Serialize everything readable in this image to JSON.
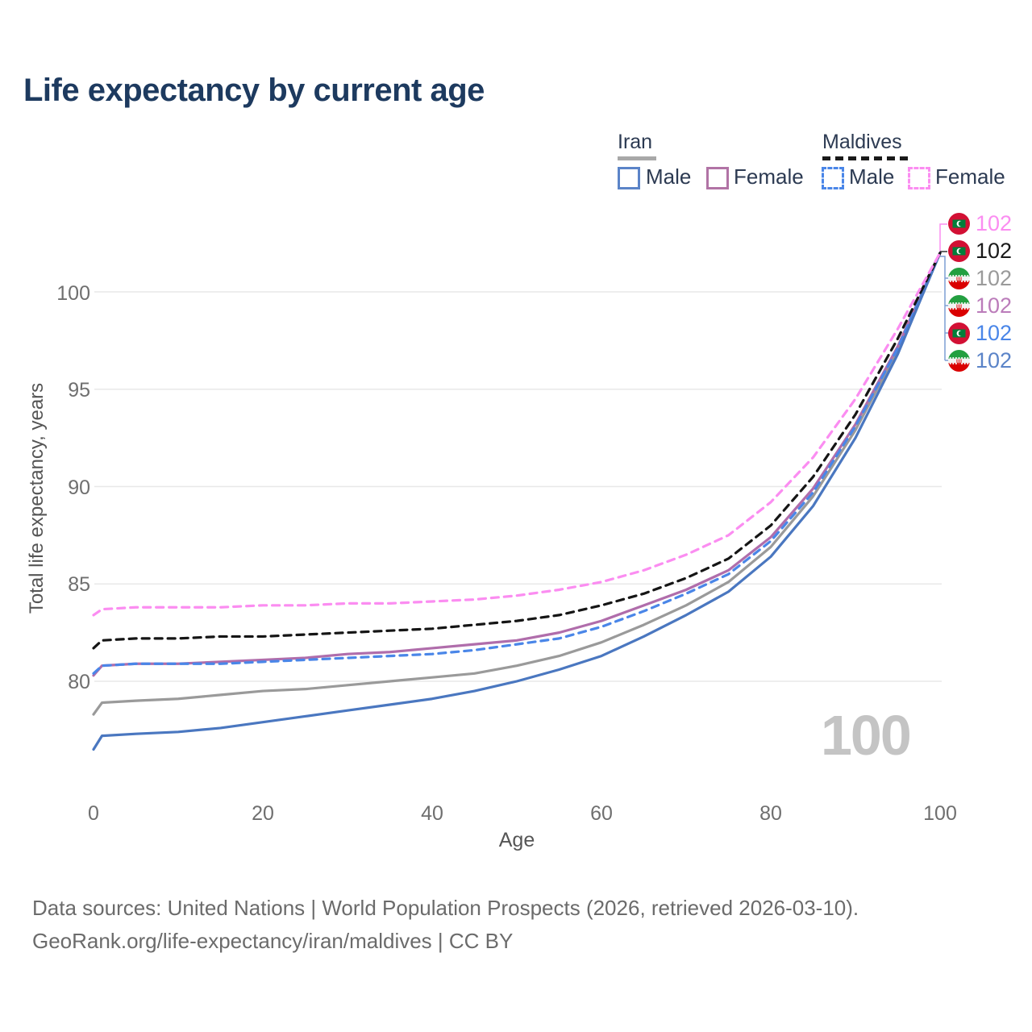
{
  "title": "Life expectancy by current age",
  "legend": {
    "groups": [
      {
        "label": "Iran",
        "style": "solid",
        "underline_color": "#a8a8a8",
        "items": [
          {
            "label": "Male",
            "color": "#5b84c8"
          },
          {
            "label": "Female",
            "color": "#b173a5"
          }
        ]
      },
      {
        "label": "Maldives",
        "style": "dashed",
        "underline_color": "#1a1a1a",
        "items": [
          {
            "label": "Male",
            "color": "#4a86e8"
          },
          {
            "label": "Female",
            "color": "#fb8df1"
          }
        ]
      }
    ]
  },
  "chart_data": {
    "type": "line",
    "title": "Life expectancy by current age",
    "xlabel": "Age",
    "ylabel": "Total life expectancy, years",
    "xlim": [
      0,
      100
    ],
    "ylim_displayed": [
      76,
      102
    ],
    "xticks": [
      0,
      20,
      40,
      60,
      80,
      100
    ],
    "yticks": [
      80,
      85,
      90,
      95,
      100
    ],
    "xtick_labels": [
      "0",
      "20",
      "40",
      "60",
      "80",
      "100"
    ],
    "ytick_labels_top_to_bottom": [
      "100",
      "95",
      "90",
      "85",
      "80"
    ],
    "grid": "horizontal",
    "legend_position": "top-right",
    "ages": [
      0,
      1,
      5,
      10,
      15,
      20,
      25,
      30,
      35,
      40,
      45,
      50,
      55,
      60,
      65,
      70,
      75,
      80,
      85,
      90,
      95,
      100
    ],
    "series": [
      {
        "id": "iran-total",
        "name": "Iran",
        "country": "Iran",
        "sex": "both",
        "style": "solid",
        "color": "#9a9a9a",
        "values": [
          78.3,
          78.9,
          79.0,
          79.1,
          79.3,
          79.5,
          79.6,
          79.8,
          80.0,
          80.2,
          80.4,
          80.8,
          81.3,
          82.0,
          82.9,
          83.9,
          85.1,
          86.9,
          89.5,
          92.9,
          97.0,
          102
        ],
        "end_value": 102
      },
      {
        "id": "iran-female",
        "name": "Iran Female",
        "country": "Iran",
        "sex": "female",
        "style": "solid",
        "color": "#b06dab",
        "values": [
          80.3,
          80.8,
          80.9,
          80.9,
          81.0,
          81.1,
          81.2,
          81.4,
          81.5,
          81.7,
          81.9,
          82.1,
          82.5,
          83.1,
          83.9,
          84.7,
          85.7,
          87.4,
          89.9,
          93.2,
          97.2,
          102
        ],
        "end_value": 102
      },
      {
        "id": "maldives-male",
        "name": "Maldives Male",
        "country": "Maldives",
        "sex": "male",
        "style": "dashed",
        "color": "#4a86e8",
        "values": [
          80.4,
          80.8,
          80.9,
          80.9,
          80.9,
          81.0,
          81.1,
          81.2,
          81.3,
          81.4,
          81.6,
          81.9,
          82.2,
          82.8,
          83.6,
          84.5,
          85.5,
          87.2,
          89.7,
          93.1,
          97.1,
          102
        ],
        "end_value": 102
      },
      {
        "id": "iran-male",
        "name": "Iran Male",
        "country": "Iran",
        "sex": "male",
        "style": "solid",
        "color": "#4a77c0",
        "values": [
          76.5,
          77.2,
          77.3,
          77.4,
          77.6,
          77.9,
          78.2,
          78.5,
          78.8,
          79.1,
          79.5,
          80.0,
          80.6,
          81.3,
          82.3,
          83.4,
          84.6,
          86.4,
          89.0,
          92.5,
          96.8,
          102
        ],
        "end_value": 102
      },
      {
        "id": "maldives-total",
        "name": "Maldives",
        "country": "Maldives",
        "sex": "both",
        "style": "dashed",
        "color": "#151515",
        "values": [
          81.7,
          82.1,
          82.2,
          82.2,
          82.3,
          82.3,
          82.4,
          82.5,
          82.6,
          82.7,
          82.9,
          83.1,
          83.4,
          83.9,
          84.5,
          85.3,
          86.3,
          88.0,
          90.5,
          93.7,
          97.6,
          102
        ],
        "end_value": 102
      },
      {
        "id": "maldives-female",
        "name": "Maldives Female",
        "country": "Maldives",
        "sex": "female",
        "style": "dashed",
        "color": "#fb8df1",
        "values": [
          83.4,
          83.7,
          83.8,
          83.8,
          83.8,
          83.9,
          83.9,
          84.0,
          84.0,
          84.1,
          84.2,
          84.4,
          84.7,
          85.1,
          85.7,
          86.5,
          87.5,
          89.2,
          91.5,
          94.5,
          98.1,
          102
        ],
        "end_value": 102
      }
    ]
  },
  "endpoint_labels": [
    {
      "flag": "maldives",
      "value": "102",
      "color": "#fb8df1",
      "series": "Maldives Female"
    },
    {
      "flag": "maldives",
      "value": "102",
      "color": "#1a1a1a",
      "series": "Maldives"
    },
    {
      "flag": "iran",
      "value": "102",
      "color": "#9a9a9a",
      "series": "Iran"
    },
    {
      "flag": "iran",
      "value": "102",
      "color": "#bb7cba",
      "series": "Iran Female"
    },
    {
      "flag": "maldives",
      "value": "102",
      "color": "#4a86e8",
      "series": "Maldives Male"
    },
    {
      "flag": "iran",
      "value": "102",
      "color": "#5b84c8",
      "series": "Iran Male"
    }
  ],
  "watermark": "100",
  "footer": {
    "line1": "Data sources: United Nations | World Population Prospects (2026, retrieved 2026-03-10).",
    "line2": "GeoRank.org/life-expectancy/iran/maldives | CC BY"
  }
}
